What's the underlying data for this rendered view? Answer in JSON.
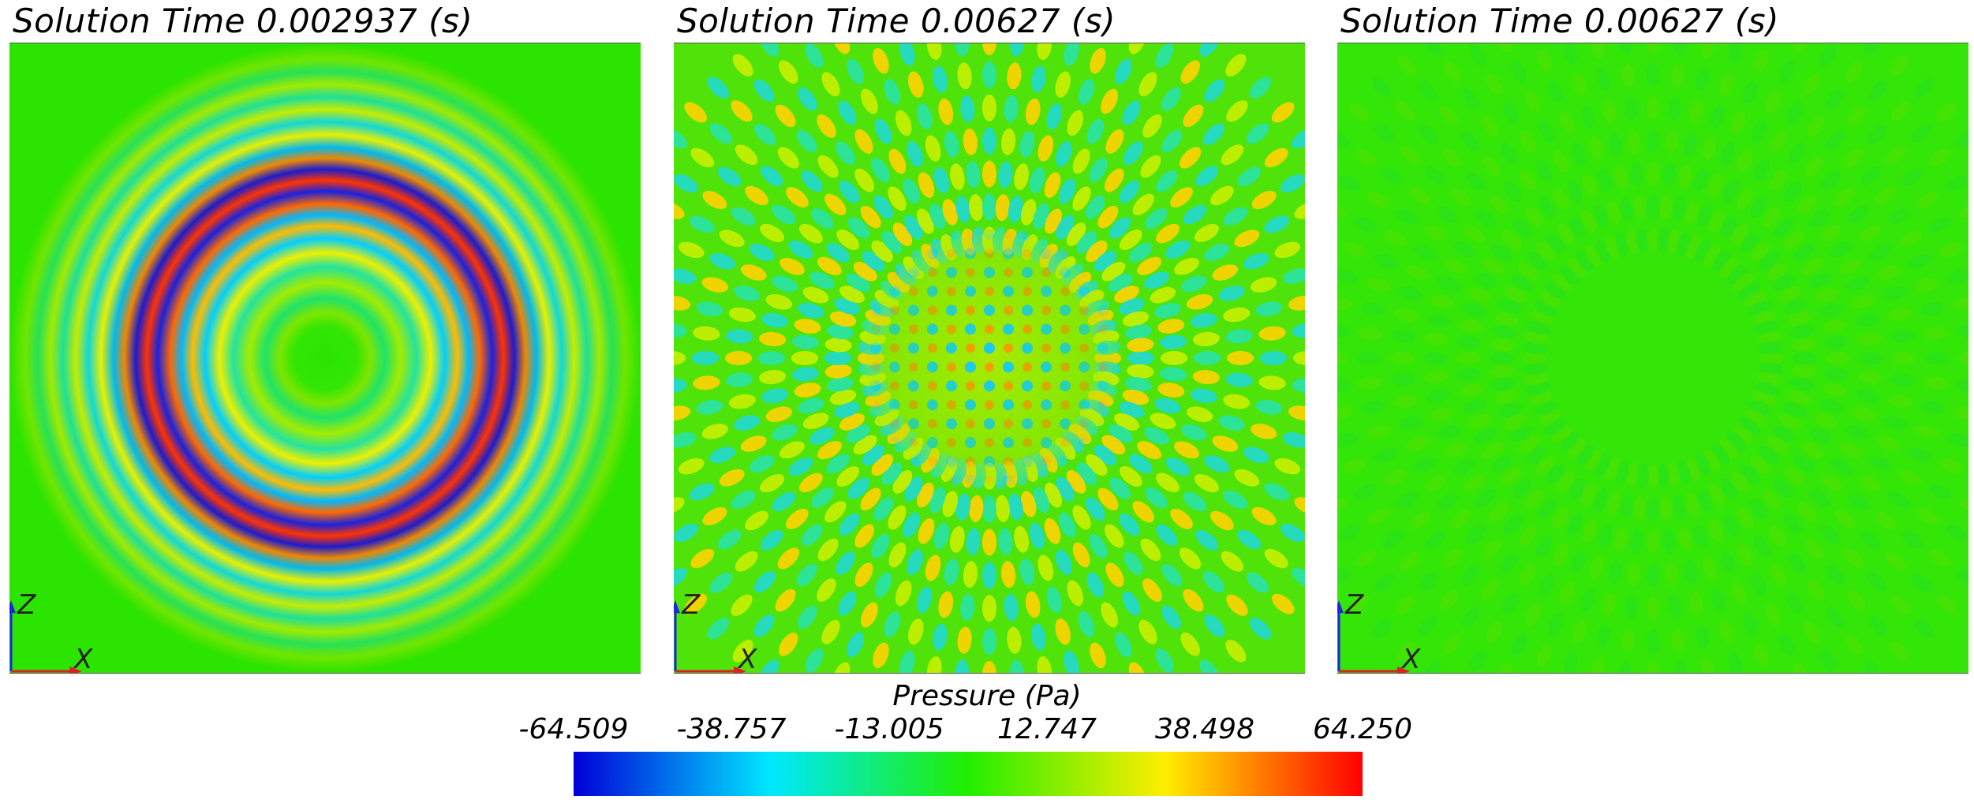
{
  "panels": [
    {
      "title": "Solution Time 0.002937 (s)",
      "axis_z": "Z",
      "axis_x": "X"
    },
    {
      "title": "Solution Time 0.00627 (s)",
      "axis_z": "Z",
      "axis_x": "X"
    },
    {
      "title": "Solution Time 0.00627 (s)",
      "axis_z": "Z",
      "axis_x": "X"
    }
  ],
  "legend": {
    "title": "Pressure (Pa)",
    "ticks": [
      "-64.509",
      "-38.757",
      "-13.005",
      "12.747",
      "38.498",
      "64.250"
    ],
    "colormap": [
      "#0000d8",
      "#00e8ff",
      "#22ee00",
      "#ffee00",
      "#ff0000"
    ]
  }
}
